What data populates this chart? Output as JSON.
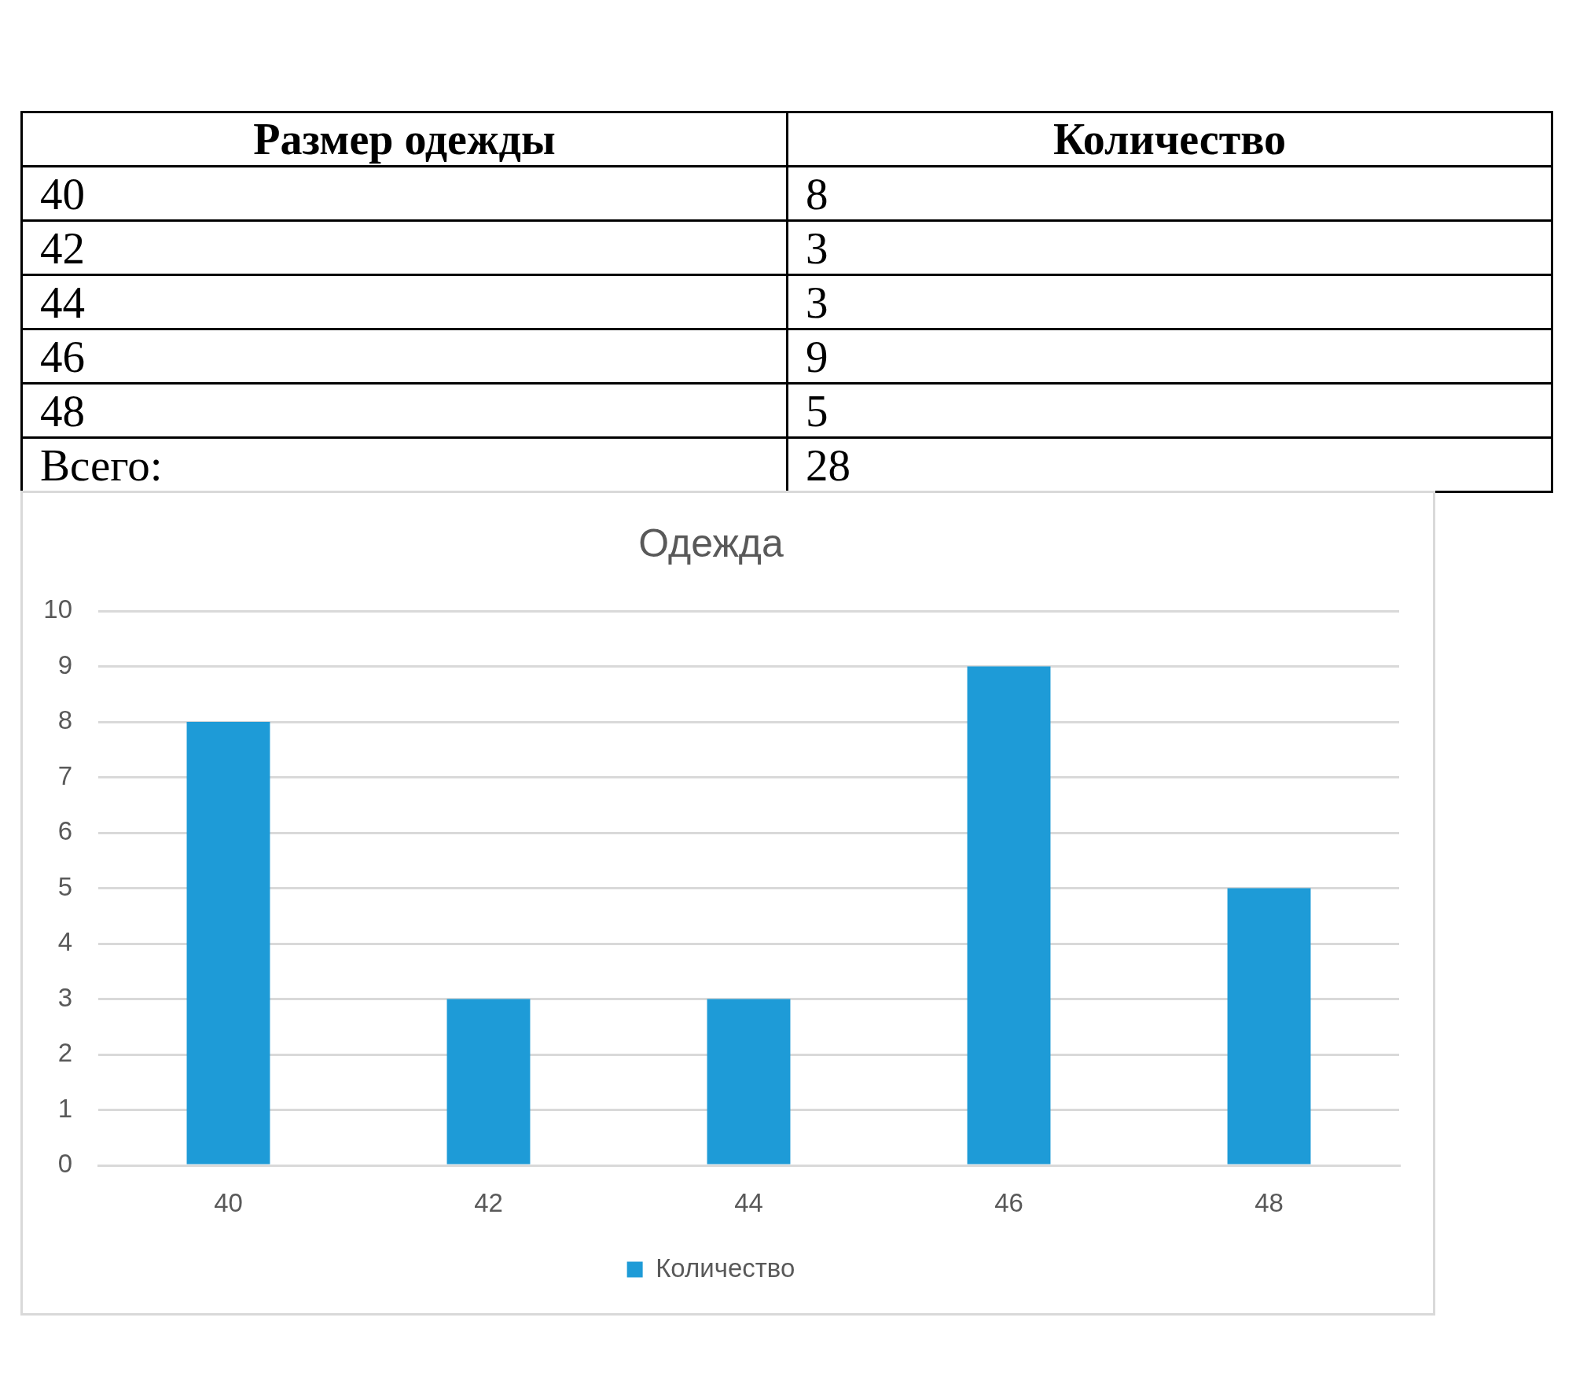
{
  "chart_data": {
    "type": "bar",
    "title": "Одежда",
    "categories": [
      "40",
      "42",
      "44",
      "46",
      "48"
    ],
    "series": [
      {
        "name": "Количество",
        "color": "#1e9bd7",
        "values": [
          8,
          3,
          3,
          9,
          5
        ]
      }
    ],
    "ylim": [
      0,
      10
    ],
    "yticks": [
      0,
      1,
      2,
      3,
      4,
      5,
      6,
      7,
      8,
      9,
      10
    ],
    "grid": "y",
    "legend": "bottom",
    "annotations": [
      "Размер одежды",
      "8",
      "3",
      "3",
      "9",
      "5",
      "Всего:",
      "28"
    ]
  }
}
